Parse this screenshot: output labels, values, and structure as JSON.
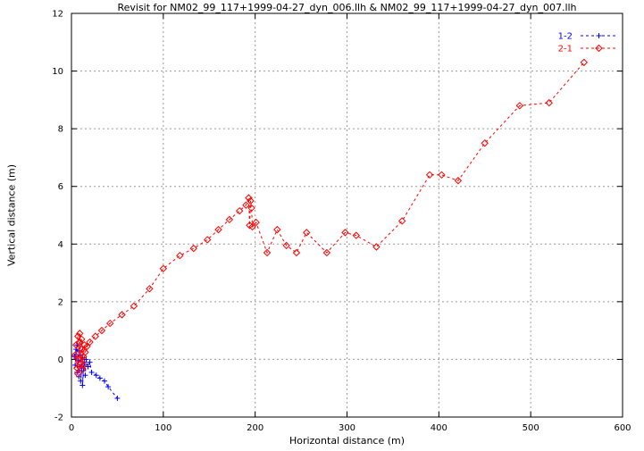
{
  "chart_data": {
    "type": "scatter",
    "title": "Revisit for NM02_99_117+1999-04-27_dyn_006.llh & NM02_99_117+1999-04-27_dyn_007.llh",
    "xlabel": "Horizontal distance (m)",
    "ylabel": "Vertical distance (m)",
    "xlim": [
      0,
      600
    ],
    "ylim": [
      -2,
      12
    ],
    "xticks": [
      0,
      100,
      200,
      300,
      400,
      500,
      600
    ],
    "yticks": [
      -2,
      0,
      2,
      4,
      6,
      8,
      10,
      12
    ],
    "grid": true,
    "grid_color": "#9a9a9a",
    "legend_position": "top-right",
    "series": [
      {
        "name": "1-2",
        "color": "#0000ff",
        "marker": "plus",
        "line": "dashed",
        "points": [
          [
            3,
            0.1
          ],
          [
            5,
            0.35
          ],
          [
            4,
            -0.2
          ],
          [
            6,
            0.5
          ],
          [
            7,
            -0.05
          ],
          [
            6,
            -0.45
          ],
          [
            8,
            0.3
          ],
          [
            9,
            -0.25
          ],
          [
            8,
            -0.6
          ],
          [
            10,
            0.15
          ],
          [
            11,
            -0.4
          ],
          [
            10,
            -0.75
          ],
          [
            12,
            0.05
          ],
          [
            13,
            -0.3
          ],
          [
            12,
            -0.9
          ],
          [
            14,
            -0.1
          ],
          [
            15,
            -0.55
          ],
          [
            16,
            0.0
          ],
          [
            18,
            -0.25
          ],
          [
            20,
            -0.1
          ],
          [
            22,
            -0.45
          ],
          [
            27,
            -0.55
          ],
          [
            31,
            -0.65
          ],
          [
            36,
            -0.75
          ],
          [
            40,
            -0.95
          ],
          [
            50,
            -1.35
          ]
        ]
      },
      {
        "name": "2-1",
        "color": "#ff0000",
        "marker": "diamond",
        "line": "dashed",
        "points": [
          [
            4,
            0.15
          ],
          [
            6,
            -0.3
          ],
          [
            5,
            0.5
          ],
          [
            7,
            0.8
          ],
          [
            8,
            0.0
          ],
          [
            7,
            -0.5
          ],
          [
            9,
            0.6
          ],
          [
            10,
            -0.15
          ],
          [
            9,
            0.9
          ],
          [
            11,
            0.35
          ],
          [
            12,
            -0.35
          ],
          [
            11,
            0.7
          ],
          [
            13,
            0.1
          ],
          [
            14,
            0.5
          ],
          [
            13,
            -0.2
          ],
          [
            15,
            0.25
          ],
          [
            17,
            0.45
          ],
          [
            20,
            0.6
          ],
          [
            26,
            0.8
          ],
          [
            33,
            1.0
          ],
          [
            42,
            1.25
          ],
          [
            55,
            1.55
          ],
          [
            68,
            1.85
          ],
          [
            85,
            2.45
          ],
          [
            100,
            3.15
          ],
          [
            118,
            3.6
          ],
          [
            133,
            3.85
          ],
          [
            148,
            4.15
          ],
          [
            160,
            4.5
          ],
          [
            172,
            4.85
          ],
          [
            183,
            5.15
          ],
          [
            190,
            5.35
          ],
          [
            193,
            5.6
          ],
          [
            194,
            4.65
          ],
          [
            195,
            5.5
          ],
          [
            196,
            5.25
          ],
          [
            197,
            4.6
          ],
          [
            201,
            4.75
          ],
          [
            213,
            3.7
          ],
          [
            224,
            4.5
          ],
          [
            234,
            3.95
          ],
          [
            245,
            3.7
          ],
          [
            256,
            4.4
          ],
          [
            278,
            3.7
          ],
          [
            298,
            4.4
          ],
          [
            310,
            4.3
          ],
          [
            332,
            3.9
          ],
          [
            360,
            4.8
          ],
          [
            390,
            6.4
          ],
          [
            403,
            6.4
          ],
          [
            421,
            6.2
          ],
          [
            450,
            7.5
          ],
          [
            488,
            8.8
          ],
          [
            520,
            8.9
          ],
          [
            558,
            10.3
          ]
        ]
      }
    ]
  }
}
